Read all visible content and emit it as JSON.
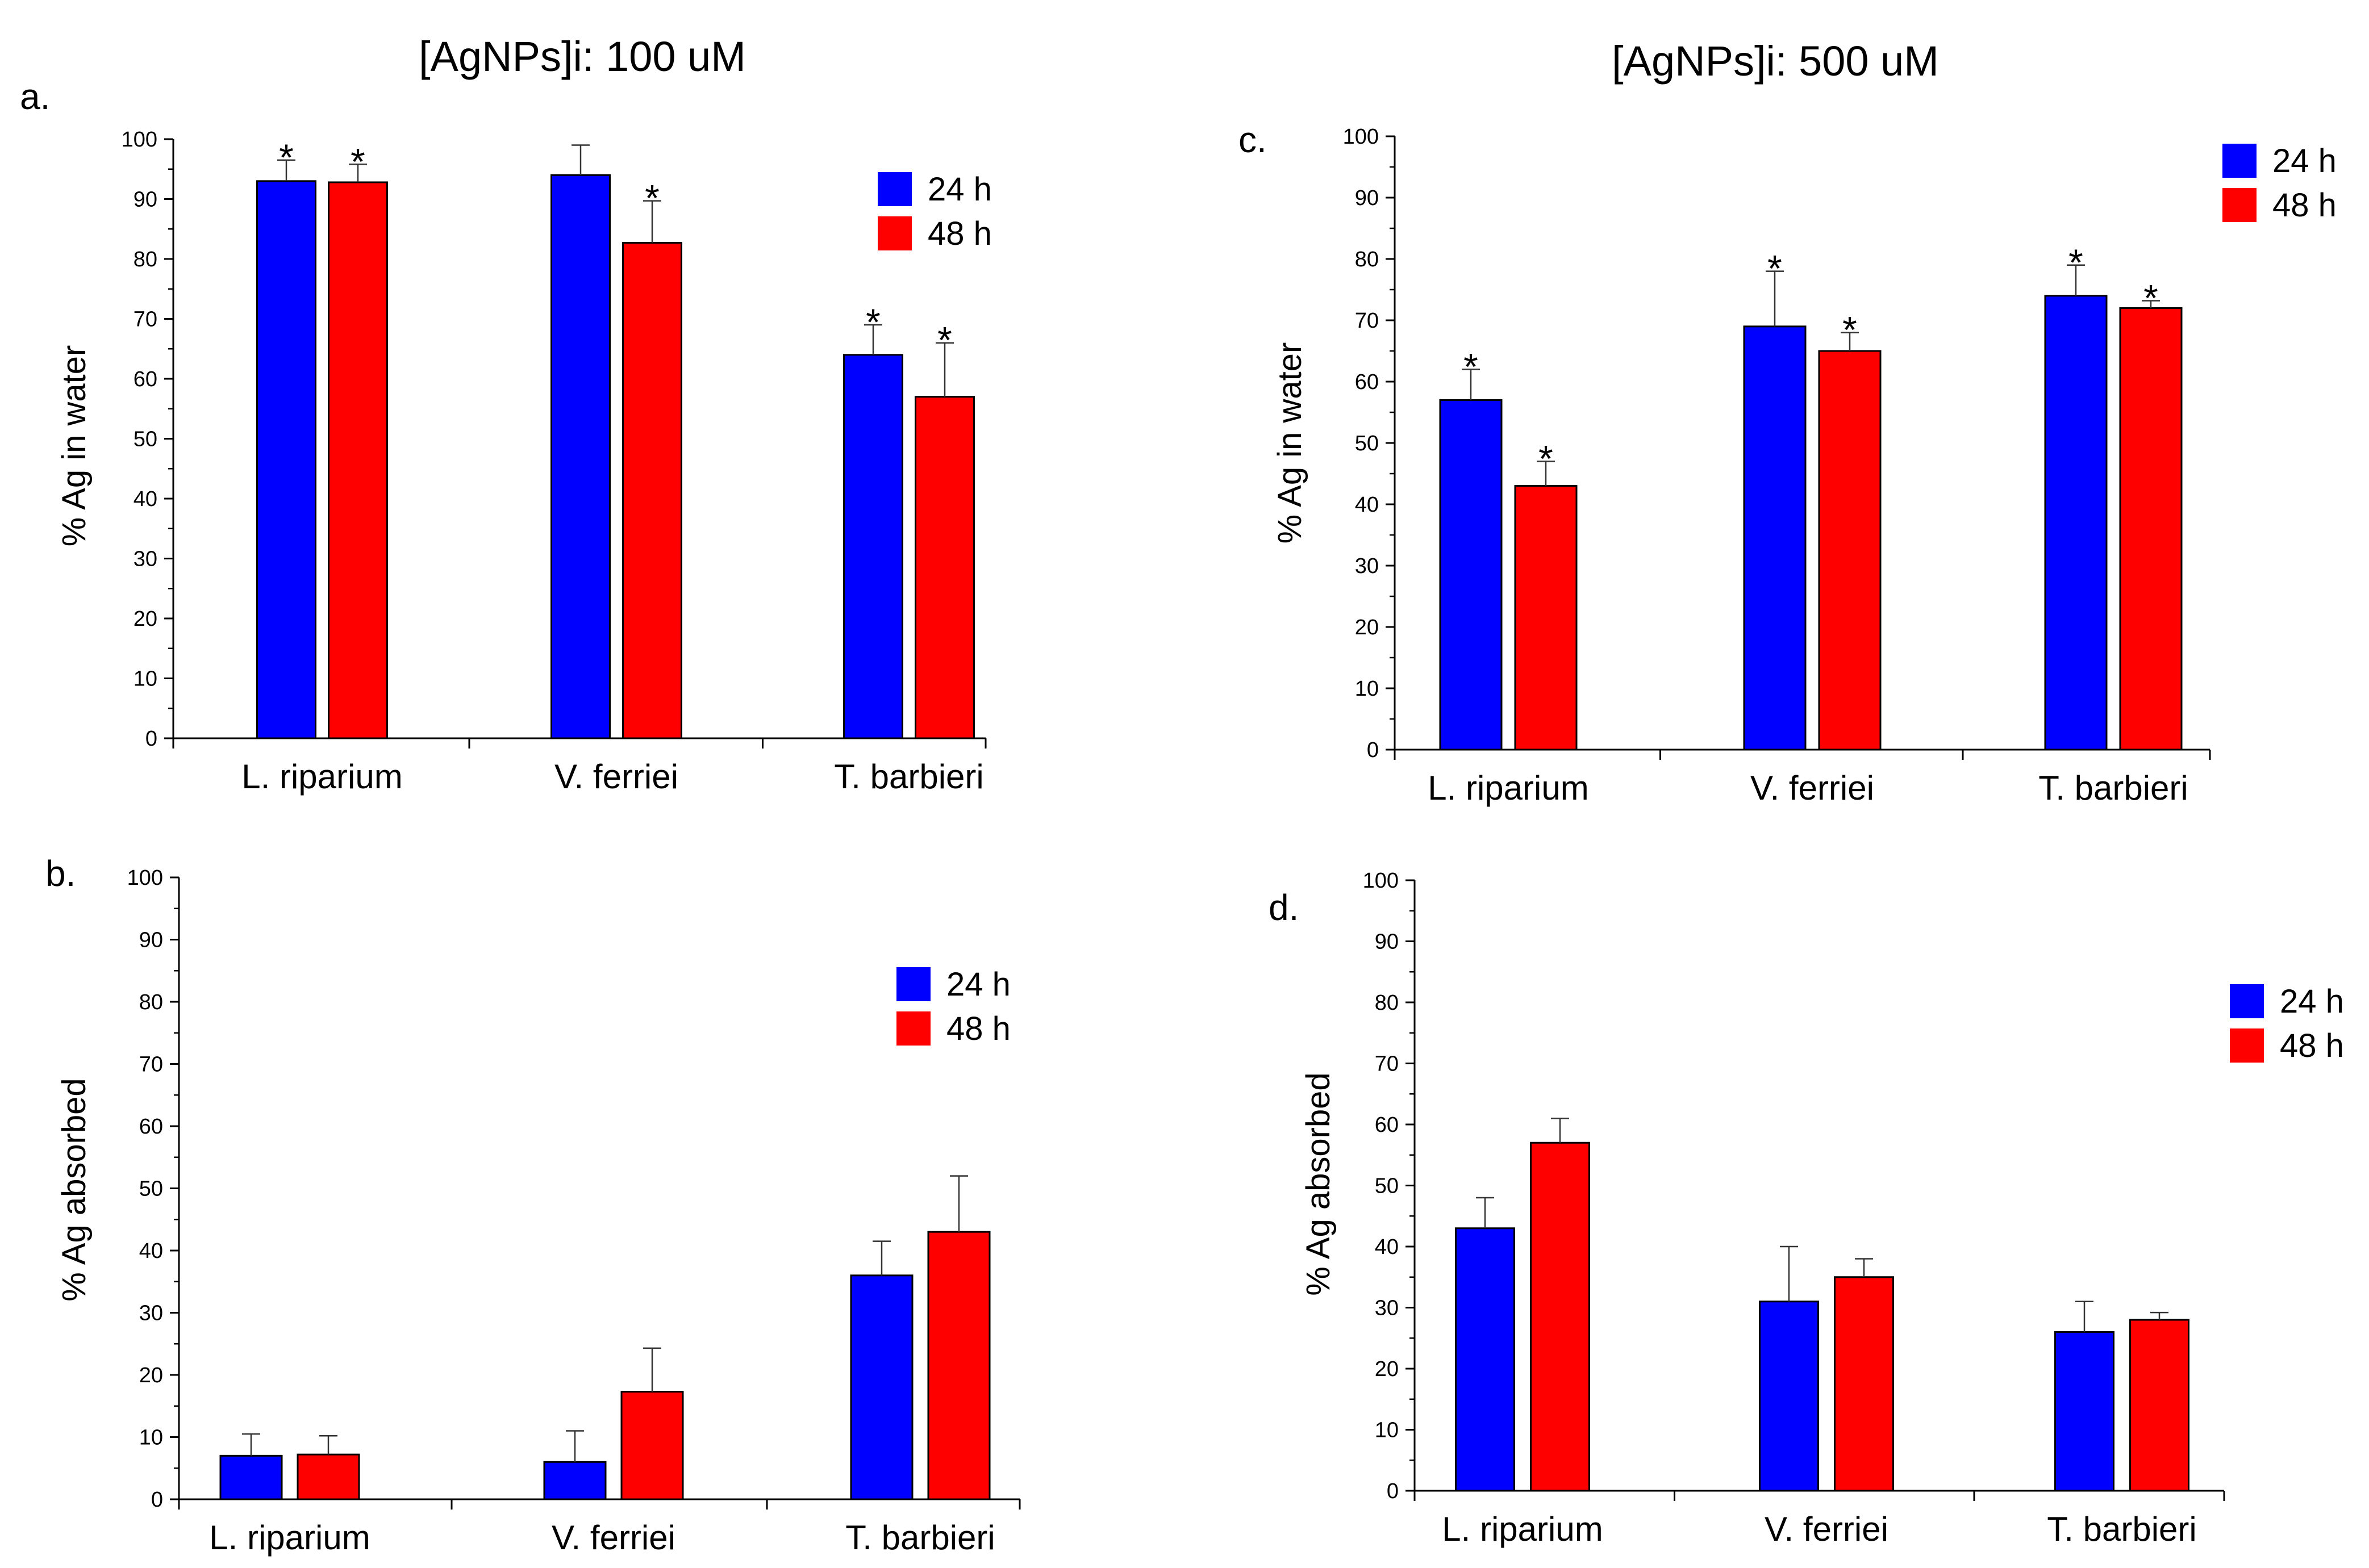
{
  "headings": {
    "left": "[AgNPs]i: 100 uM",
    "right": "[AgNPs]i: 500 uM"
  },
  "chart_data": [
    {
      "id": "a",
      "panel_label": "a.",
      "type": "bar",
      "title": "",
      "xlabel": "",
      "ylabel": "% Ag in water",
      "ylim": [
        0,
        100
      ],
      "yticks": [
        "0",
        "10",
        "20",
        "30",
        "40",
        "50",
        "60",
        "70",
        "80",
        "90",
        "100"
      ],
      "categories": [
        "L. riparium",
        "V. ferriei",
        "T. barbieri"
      ],
      "series": [
        {
          "name": "24 h",
          "color": "#0000ff",
          "values": [
            93,
            94,
            64
          ],
          "errors": [
            3.5,
            5,
            5
          ],
          "marks": [
            "*",
            "",
            "*"
          ]
        },
        {
          "name": "48 h",
          "color": "#ff0000",
          "values": [
            92.8,
            82.7,
            57
          ],
          "errors": [
            3,
            7,
            9
          ],
          "marks": [
            "*",
            "*",
            "*"
          ]
        }
      ]
    },
    {
      "id": "b",
      "panel_label": "b.",
      "type": "bar",
      "title": "",
      "xlabel": "",
      "ylabel": "% Ag absorbed",
      "ylim": [
        0,
        100
      ],
      "yticks": [
        "0",
        "10",
        "20",
        "30",
        "40",
        "50",
        "60",
        "70",
        "80",
        "90",
        "100"
      ],
      "categories": [
        "L. riparium",
        "V. ferriei",
        "T. barbieri"
      ],
      "series": [
        {
          "name": "24 h",
          "color": "#0000ff",
          "values": [
            7,
            6,
            36
          ],
          "errors": [
            3.5,
            5,
            5.5
          ],
          "marks": [
            "",
            "",
            ""
          ]
        },
        {
          "name": "48 h",
          "color": "#ff0000",
          "values": [
            7.2,
            17.3,
            43
          ],
          "errors": [
            3,
            7,
            9
          ],
          "marks": [
            "",
            "",
            ""
          ]
        }
      ]
    },
    {
      "id": "c",
      "panel_label": "c.",
      "type": "bar",
      "title": "",
      "xlabel": "",
      "ylabel": "% Ag in water",
      "ylim": [
        0,
        100
      ],
      "yticks": [
        "0",
        "10",
        "20",
        "30",
        "40",
        "50",
        "60",
        "70",
        "80",
        "90",
        "100"
      ],
      "categories": [
        "L. riparium",
        "V. ferriei",
        "T. barbieri"
      ],
      "series": [
        {
          "name": "24 h",
          "color": "#0000ff",
          "values": [
            57,
            69,
            74
          ],
          "errors": [
            5,
            9,
            5
          ],
          "marks": [
            "*",
            "*",
            "*"
          ]
        },
        {
          "name": "48 h",
          "color": "#ff0000",
          "values": [
            43,
            65,
            72
          ],
          "errors": [
            4,
            3,
            1.2
          ],
          "marks": [
            "*",
            "*",
            "*"
          ]
        }
      ]
    },
    {
      "id": "d",
      "panel_label": "d.",
      "type": "bar",
      "title": "",
      "xlabel": "",
      "ylabel": "% Ag absorbed",
      "ylim": [
        0,
        100
      ],
      "yticks": [
        "0",
        "10",
        "20",
        "30",
        "40",
        "50",
        "60",
        "70",
        "80",
        "90",
        "100"
      ],
      "categories": [
        "L. riparium",
        "V. ferriei",
        "T. barbieri"
      ],
      "series": [
        {
          "name": "24 h",
          "color": "#0000ff",
          "values": [
            43,
            31,
            26
          ],
          "errors": [
            5,
            9,
            5
          ],
          "marks": [
            "",
            "",
            ""
          ]
        },
        {
          "name": "48 h",
          "color": "#ff0000",
          "values": [
            57,
            35,
            28
          ],
          "errors": [
            4,
            3,
            1.2
          ],
          "marks": [
            "",
            "",
            ""
          ]
        }
      ]
    }
  ]
}
